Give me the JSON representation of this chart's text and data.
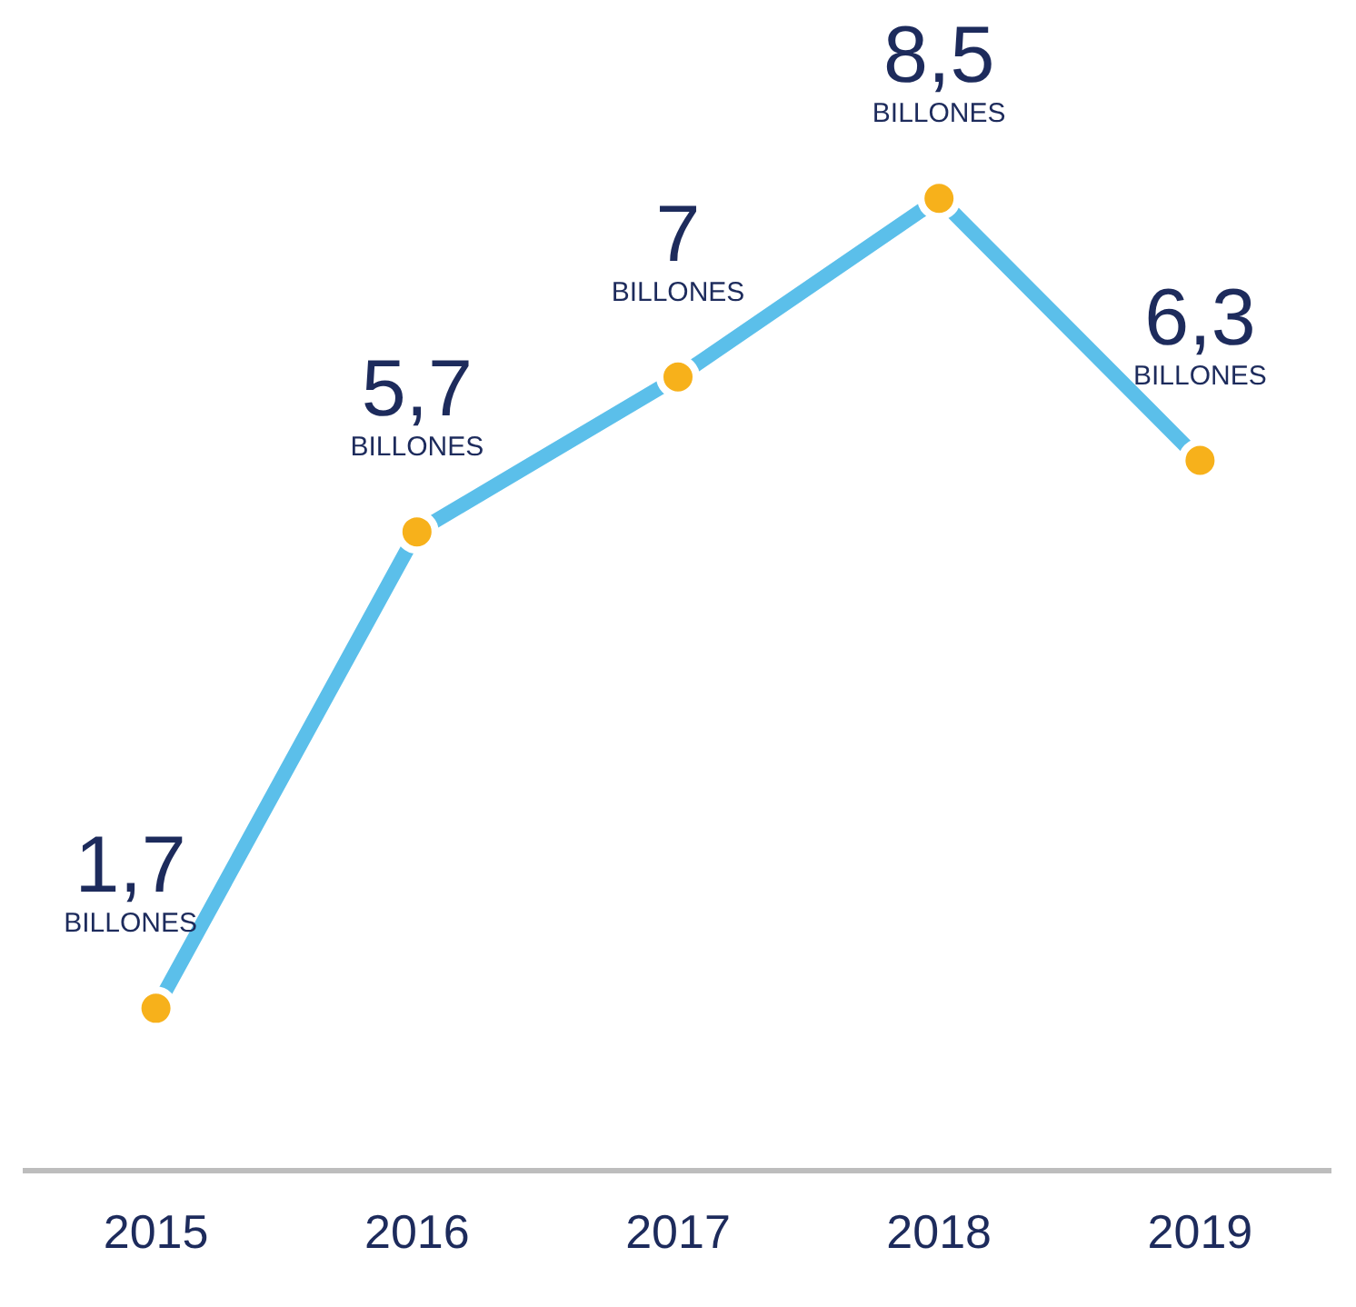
{
  "chart_data": {
    "type": "line",
    "categories": [
      "2015",
      "2016",
      "2017",
      "2018",
      "2019"
    ],
    "series": [
      {
        "color": "#5bbfea",
        "values": [
          1.7,
          5.7,
          7,
          8.5,
          6.3
        ],
        "value_labels": [
          "1,7",
          "5,7",
          "7",
          "8,5",
          "6,3"
        ]
      }
    ],
    "marker": "circle",
    "line_style": "solid",
    "grid": false,
    "legend": false,
    "tick_labels": "x",
    "annotations": [
      {
        "text": "BILLONES",
        "x": "2015",
        "y": 1.7
      },
      {
        "text": "BILLONES",
        "x": "2016",
        "y": 5.7
      },
      {
        "text": "BILLONES",
        "x": "2017",
        "y": 7
      },
      {
        "text": "BILLONES",
        "x": "2018",
        "y": 8.5
      },
      {
        "text": "BILLONES",
        "x": "2019",
        "y": 6.3
      }
    ]
  }
}
